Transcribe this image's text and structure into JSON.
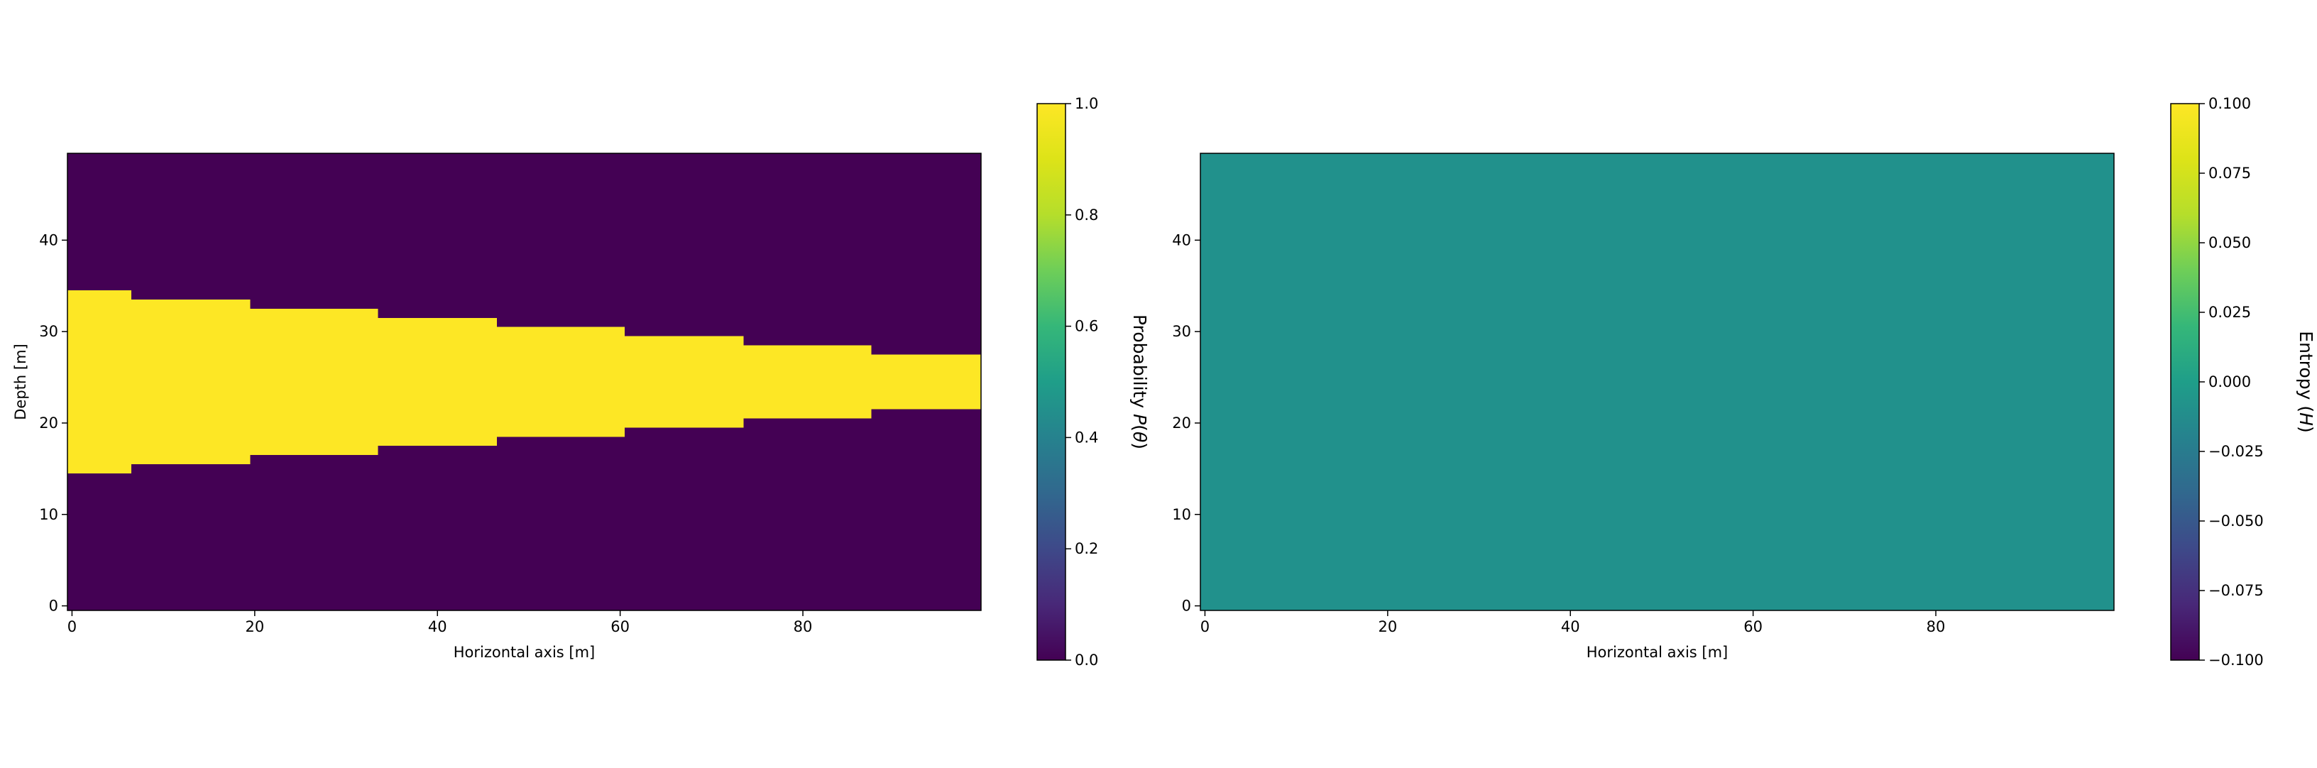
{
  "chart_data": [
    {
      "type": "heatmap",
      "title": "",
      "xlabel": "Horizontal axis [m]",
      "ylabel": "Depth [m]",
      "xlim": [
        -0.5,
        99.5
      ],
      "ylim": [
        -0.5,
        49.5
      ],
      "xticks": [
        0,
        20,
        40,
        60,
        80
      ],
      "yticks": [
        0,
        10,
        20,
        30,
        40
      ],
      "background_value": 0.0,
      "regions": [
        {
          "x": [
            -0.5,
            6.5
          ],
          "y": [
            14.5,
            34.5
          ],
          "value": 1.0
        },
        {
          "x": [
            6.5,
            19.5
          ],
          "y": [
            15.5,
            33.5
          ],
          "value": 1.0
        },
        {
          "x": [
            19.5,
            33.5
          ],
          "y": [
            16.5,
            32.5
          ],
          "value": 1.0
        },
        {
          "x": [
            33.5,
            46.5
          ],
          "y": [
            17.5,
            31.5
          ],
          "value": 1.0
        },
        {
          "x": [
            46.5,
            60.5
          ],
          "y": [
            18.5,
            30.5
          ],
          "value": 1.0
        },
        {
          "x": [
            60.5,
            73.5
          ],
          "y": [
            19.5,
            29.5
          ],
          "value": 1.0
        },
        {
          "x": [
            73.5,
            87.5
          ],
          "y": [
            20.5,
            28.5
          ],
          "value": 1.0
        },
        {
          "x": [
            87.5,
            99.5
          ],
          "y": [
            21.5,
            27.5
          ],
          "value": 1.0
        }
      ],
      "colorbar": {
        "label": "Probability P(θ)",
        "label_parts": [
          "Probability ",
          "P",
          "(",
          "θ",
          ")"
        ],
        "range": [
          0.0,
          1.0
        ],
        "ticks": [
          0.0,
          0.2,
          0.4,
          0.6,
          0.8,
          1.0
        ],
        "tick_labels": [
          "0.0",
          "0.2",
          "0.4",
          "0.6",
          "0.8",
          "1.0"
        ],
        "colormap": "viridis"
      }
    },
    {
      "type": "heatmap",
      "title": "",
      "xlabel": "Horizontal axis [m]",
      "ylabel": "",
      "xlim": [
        -0.5,
        99.5
      ],
      "ylim": [
        -0.5,
        49.5
      ],
      "xticks": [
        0,
        20,
        40,
        60,
        80
      ],
      "yticks": [
        0,
        10,
        20,
        30,
        40
      ],
      "background_value": 0.0,
      "regions": [],
      "colorbar": {
        "label": "Entropy (H)",
        "label_parts": [
          "Entropy ",
          "(",
          "H",
          ")"
        ],
        "range": [
          -0.1,
          0.1
        ],
        "ticks": [
          -0.1,
          -0.075,
          -0.05,
          -0.025,
          0.0,
          0.025,
          0.05,
          0.075,
          0.1
        ],
        "tick_labels": [
          "−0.100",
          "−0.075",
          "−0.050",
          "−0.025",
          "0.000",
          "0.025",
          "0.050",
          "0.075",
          "0.100"
        ],
        "colormap": "viridis"
      }
    }
  ],
  "colors": {
    "viridis_low": "#440154",
    "viridis_mid": "#21918c",
    "viridis_high": "#fde725"
  }
}
